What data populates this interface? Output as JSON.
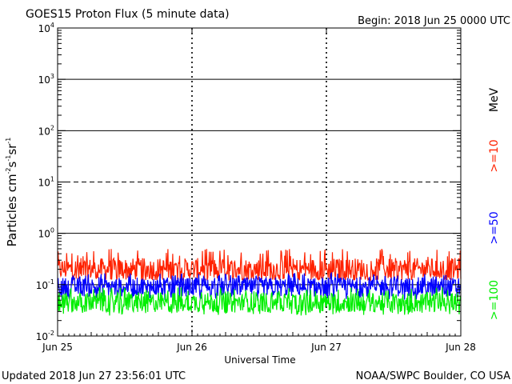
{
  "header": {
    "title": "GOES15 Proton Flux (5 minute data)",
    "begin": "Begin: 2018 Jun 25 0000 UTC"
  },
  "footer": {
    "updated": "Updated 2018 Jun 27 23:56:01 UTC",
    "source": "NOAA/SWPC Boulder, CO USA"
  },
  "units": "MeV",
  "colors": {
    "ge10": "#ff2200",
    "ge50": "#0000ff",
    "ge100": "#00ee00",
    "axis": "#000000"
  },
  "chart_data": {
    "type": "line",
    "title": "GOES15 Proton Flux (5 minute data)",
    "ylabel_main": "Particles cm",
    "ylabel_parts": {
      "a": "-2",
      "b": "s",
      "c": "-1",
      "d": "sr",
      "e": "-1"
    },
    "xlabel": "Universal Time",
    "y_scale": "log",
    "ylim": [
      0.01,
      10000
    ],
    "y_ticks": [
      {
        "value": 0.01,
        "base": "10",
        "exp": "-2"
      },
      {
        "value": 0.1,
        "base": "10",
        "exp": "-1"
      },
      {
        "value": 1,
        "base": "10",
        "exp": "0"
      },
      {
        "value": 10,
        "base": "10",
        "exp": "1"
      },
      {
        "value": 100,
        "base": "10",
        "exp": "2"
      },
      {
        "value": 1000,
        "base": "10",
        "exp": "3"
      },
      {
        "value": 10000,
        "base": "10",
        "exp": "4"
      }
    ],
    "x_ticks": [
      "Jun 25",
      "Jun 26",
      "Jun 27",
      "Jun 28"
    ],
    "xlim_days": [
      0,
      3
    ],
    "reference_lines": [
      {
        "value": 0.1,
        "style": "solid"
      },
      {
        "value": 1,
        "style": "solid"
      },
      {
        "value": 10,
        "style": "dashed"
      },
      {
        "value": 100,
        "style": "solid"
      },
      {
        "value": 1000,
        "style": "solid"
      }
    ],
    "grid": "dashed verticals at day boundaries",
    "series": [
      {
        "name": ">=10",
        "color": "#ff2200",
        "typical": 0.2,
        "low": 0.12,
        "high": 0.5
      },
      {
        "name": ">=50",
        "color": "#0000ff",
        "typical": 0.09,
        "low": 0.05,
        "high": 0.17
      },
      {
        "name": ">=100",
        "color": "#00ee00",
        "typical": 0.045,
        "low": 0.025,
        "high": 0.09
      }
    ]
  }
}
